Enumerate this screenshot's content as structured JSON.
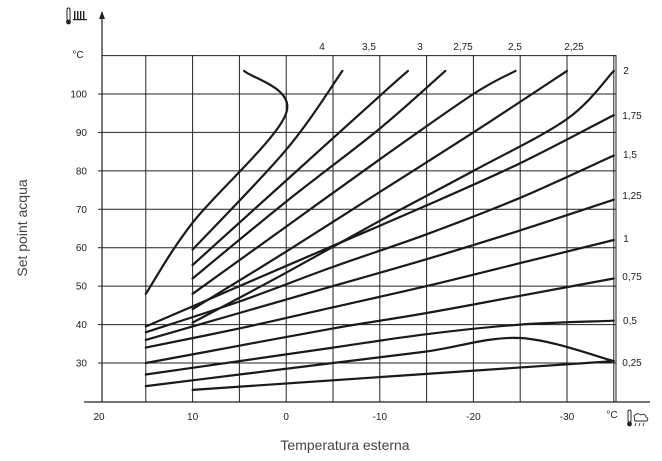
{
  "chart_data": {
    "type": "line",
    "xlabel": "Temperatura esterna",
    "ylabel": "Set point acqua",
    "x_unit": "°C",
    "y_unit": "°C",
    "x_ticks": [
      20,
      10,
      0,
      -10,
      -20,
      -30
    ],
    "x_tick_labels": [
      "20",
      "10",
      "0",
      "-10",
      "-20",
      "-30"
    ],
    "y_ticks": [
      30,
      40,
      50,
      60,
      70,
      80,
      90,
      100
    ],
    "y_tick_labels": [
      "30",
      "40",
      "50",
      "60",
      "70",
      "80",
      "90",
      "100"
    ],
    "xlim": [
      20,
      -35
    ],
    "ylim": [
      20,
      110
    ],
    "grid": true,
    "icons": {
      "y_axis": "radiator-thermometer-icon",
      "x_axis": "outdoor-thermometer-icon"
    },
    "series": [
      {
        "name": "0,25",
        "x": [
          10,
          -35
        ],
        "y": [
          23,
          30.5
        ]
      },
      {
        "name": "0,25",
        "x": [
          15,
          5,
          -5,
          -15,
          -25,
          -35
        ],
        "y": [
          24,
          27,
          30,
          33,
          36.5,
          30.5
        ]
      },
      {
        "name": "0,5",
        "x": [
          15,
          5,
          -5,
          -15,
          -25,
          -35
        ],
        "y": [
          27,
          30.5,
          34,
          37.5,
          40,
          41
        ]
      },
      {
        "name": "0,75",
        "x": [
          15,
          5,
          -5,
          -15,
          -25,
          -35
        ],
        "y": [
          30,
          34.5,
          39,
          43,
          47.5,
          52
        ]
      },
      {
        "name": "1",
        "x": [
          15,
          5,
          -5,
          -15,
          -25,
          -35
        ],
        "y": [
          34,
          39,
          44.5,
          50,
          56,
          62
        ]
      },
      {
        "name": "1,25",
        "x": [
          15,
          5,
          -5,
          -15,
          -25,
          -35
        ],
        "y": [
          36,
          43,
          50,
          57,
          64.5,
          72.5
        ]
      },
      {
        "name": "1,5",
        "x": [
          15,
          5,
          -5,
          -15,
          -25,
          -35
        ],
        "y": [
          38,
          46,
          55,
          63.5,
          73,
          84
        ]
      },
      {
        "name": "1,75",
        "x": [
          15,
          5,
          -5,
          -15,
          -25,
          -35
        ],
        "y": [
          39.5,
          50,
          60.5,
          71,
          82,
          94.5
        ]
      },
      {
        "name": "2",
        "x": [
          10,
          0,
          -10,
          -20,
          -30,
          -35
        ],
        "y": [
          40.5,
          53.5,
          67,
          80,
          93.5,
          106
        ]
      },
      {
        "name": "2,25",
        "x": [
          10,
          0,
          -10,
          -20,
          -30
        ],
        "y": [
          44,
          59,
          74.5,
          90,
          106
        ]
      },
      {
        "name": "2,5",
        "x": [
          10,
          0,
          -10,
          -20,
          -24.5
        ],
        "y": [
          48,
          65.5,
          83,
          100,
          106
        ]
      },
      {
        "name": "2,75",
        "x": [
          10,
          0,
          -10,
          -17
        ],
        "y": [
          52,
          72,
          91,
          106
        ]
      },
      {
        "name": "3",
        "x": [
          10,
          0,
          -10,
          -13
        ],
        "y": [
          55.5,
          77.5,
          99.5,
          106
        ]
      },
      {
        "name": "3,5",
        "x": [
          10,
          0,
          -6
        ],
        "y": [
          59.5,
          85.5,
          106
        ]
      },
      {
        "name": "4",
        "x": [
          15,
          10,
          0,
          4.5
        ],
        "y": [
          48,
          66.5,
          95,
          106
        ]
      }
    ],
    "curve_labels": [
      "4",
      "3,5",
      "3",
      "2,75",
      "2,5",
      "2,25",
      "2",
      "1,75",
      "1,5",
      "1,25",
      "1",
      "0,75",
      "0,5",
      "0,25"
    ]
  }
}
